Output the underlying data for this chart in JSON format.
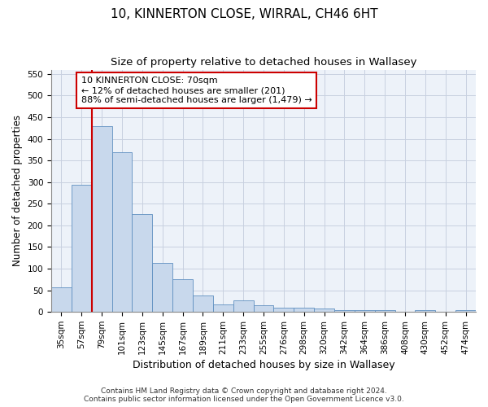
{
  "title": "10, KINNERTON CLOSE, WIRRAL, CH46 6HT",
  "subtitle": "Size of property relative to detached houses in Wallasey",
  "xlabel": "Distribution of detached houses by size in Wallasey",
  "ylabel": "Number of detached properties",
  "footer_line1": "Contains HM Land Registry data © Crown copyright and database right 2024.",
  "footer_line2": "Contains public sector information licensed under the Open Government Licence v3.0.",
  "categories": [
    "35sqm",
    "57sqm",
    "79sqm",
    "101sqm",
    "123sqm",
    "145sqm",
    "167sqm",
    "189sqm",
    "211sqm",
    "233sqm",
    "255sqm",
    "276sqm",
    "298sqm",
    "320sqm",
    "342sqm",
    "364sqm",
    "386sqm",
    "408sqm",
    "430sqm",
    "452sqm",
    "474sqm"
  ],
  "values": [
    57,
    293,
    430,
    369,
    226,
    113,
    76,
    38,
    17,
    27,
    15,
    10,
    10,
    8,
    4,
    5,
    5,
    0,
    5,
    0,
    4
  ],
  "bar_color": "#c8d8ec",
  "bar_edge_color": "#6090c0",
  "grid_color": "#c8d0e0",
  "red_line_color": "#cc0000",
  "red_line_bar_index": 2,
  "annotation_text": "10 KINNERTON CLOSE: 70sqm\n← 12% of detached houses are smaller (201)\n88% of semi-detached houses are larger (1,479) →",
  "ylim": [
    0,
    560
  ],
  "yticks": [
    0,
    50,
    100,
    150,
    200,
    250,
    300,
    350,
    400,
    450,
    500,
    550
  ],
  "title_fontsize": 11,
  "subtitle_fontsize": 9.5,
  "ylabel_fontsize": 8.5,
  "xlabel_fontsize": 9,
  "tick_fontsize": 7.5,
  "annotation_fontsize": 8,
  "footer_fontsize": 6.5,
  "fig_bg_color": "#ffffff",
  "plot_bg_color": "#edf2f9"
}
